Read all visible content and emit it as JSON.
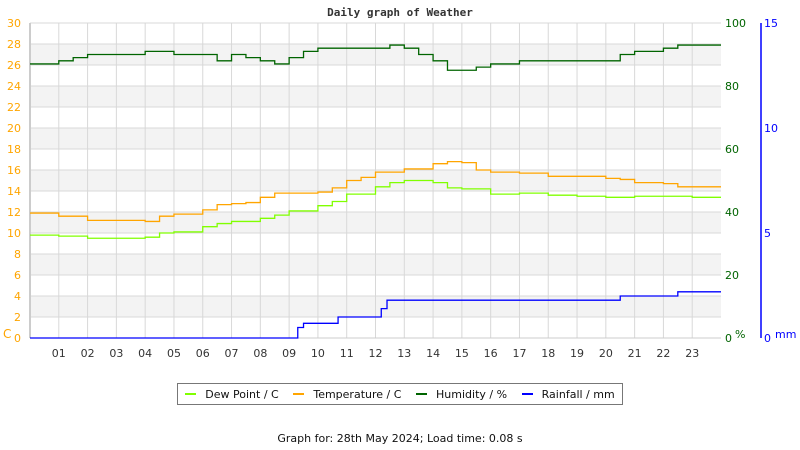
{
  "chart_data": {
    "type": "line",
    "title": "Daily graph of Weather",
    "x_ticks": [
      "01",
      "02",
      "03",
      "04",
      "05",
      "06",
      "07",
      "08",
      "09",
      "10",
      "11",
      "12",
      "13",
      "14",
      "15",
      "16",
      "17",
      "18",
      "19",
      "20",
      "21",
      "22",
      "23"
    ],
    "xlim": [
      0,
      24
    ],
    "grid": true,
    "legend_placement": "bottom",
    "axes": {
      "left": {
        "unit": "C",
        "ylim": [
          0,
          30
        ],
        "ticks": [
          "0",
          "2",
          "4",
          "6",
          "8",
          "10",
          "12",
          "14",
          "16",
          "18",
          "20",
          "22",
          "24",
          "26",
          "28",
          "30"
        ],
        "color": "#ffa500"
      },
      "right_humidity": {
        "unit": "%",
        "ylim": [
          0,
          100
        ],
        "ticks": [
          "0",
          "20",
          "40",
          "60",
          "80",
          "100"
        ],
        "color": "#006400"
      },
      "right_rain": {
        "unit": "mm",
        "ylim": [
          0,
          15
        ],
        "ticks": [
          "0",
          "5",
          "10",
          "15"
        ],
        "color": "#0000ff"
      }
    },
    "series": [
      {
        "name": "Dew Point / C",
        "axis": "left",
        "color": "#80ff00",
        "x": [
          0,
          1,
          2,
          3,
          4,
          4.5,
          5,
          6,
          6.5,
          7,
          8,
          8.5,
          9,
          10,
          10.5,
          11,
          12,
          12.5,
          13,
          14,
          14.5,
          15,
          16,
          17,
          18,
          19,
          20,
          21,
          22,
          23,
          24
        ],
        "values": [
          9.8,
          9.7,
          9.5,
          9.5,
          9.6,
          10.0,
          10.1,
          10.6,
          10.9,
          11.1,
          11.4,
          11.7,
          12.1,
          12.6,
          13.0,
          13.7,
          14.4,
          14.8,
          15.0,
          14.8,
          14.3,
          14.2,
          13.7,
          13.8,
          13.6,
          13.5,
          13.4,
          13.5,
          13.5,
          13.4,
          13.4
        ]
      },
      {
        "name": "Temperature / C",
        "axis": "left",
        "color": "#ffa500",
        "x": [
          0,
          1,
          2,
          3,
          4,
          4.5,
          5,
          6,
          6.5,
          7,
          7.5,
          8,
          8.5,
          9,
          10,
          10.5,
          11,
          11.5,
          12,
          13,
          14,
          14.5,
          15,
          15.5,
          16,
          17,
          18,
          19,
          20,
          20.5,
          21,
          22,
          22.5,
          23,
          24
        ],
        "values": [
          11.9,
          11.6,
          11.2,
          11.2,
          11.1,
          11.6,
          11.8,
          12.2,
          12.7,
          12.8,
          12.9,
          13.4,
          13.8,
          13.8,
          13.9,
          14.3,
          15.0,
          15.3,
          15.8,
          16.1,
          16.6,
          16.8,
          16.7,
          16.0,
          15.8,
          15.7,
          15.4,
          15.4,
          15.2,
          15.1,
          14.8,
          14.7,
          14.4,
          14.4,
          14.4
        ]
      },
      {
        "name": "Humidity / %",
        "axis": "right_humidity",
        "color": "#006400",
        "x": [
          0,
          0.5,
          1,
          1.5,
          2,
          3,
          3.5,
          4,
          5,
          6,
          6.5,
          7,
          7.5,
          8,
          8.5,
          9,
          9.5,
          10,
          11,
          12,
          12.5,
          13,
          13.5,
          14,
          14.5,
          15,
          15.5,
          16,
          17,
          18,
          19,
          20,
          20.5,
          21,
          22,
          22.5,
          24
        ],
        "values": [
          87,
          87,
          88,
          89,
          90,
          90,
          90,
          91,
          90,
          90,
          88,
          90,
          89,
          88,
          87,
          89,
          91,
          92,
          92,
          92,
          93,
          92,
          90,
          88,
          85,
          85,
          86,
          87,
          88,
          88,
          88,
          88,
          90,
          91,
          92,
          93,
          93
        ]
      },
      {
        "name": "Rainfall / mm",
        "axis": "right_rain",
        "color": "#0000ff",
        "x": [
          0,
          9.2,
          9.3,
          9.5,
          10.7,
          12.2,
          12.4,
          20.5,
          22.5,
          24
        ],
        "values": [
          0,
          0,
          0.5,
          0.7,
          1.0,
          1.4,
          1.8,
          2.0,
          2.2,
          2.2
        ],
        "step": true
      }
    ]
  },
  "footer": "Graph for: 28th May 2024; Load time: 0.08 s"
}
